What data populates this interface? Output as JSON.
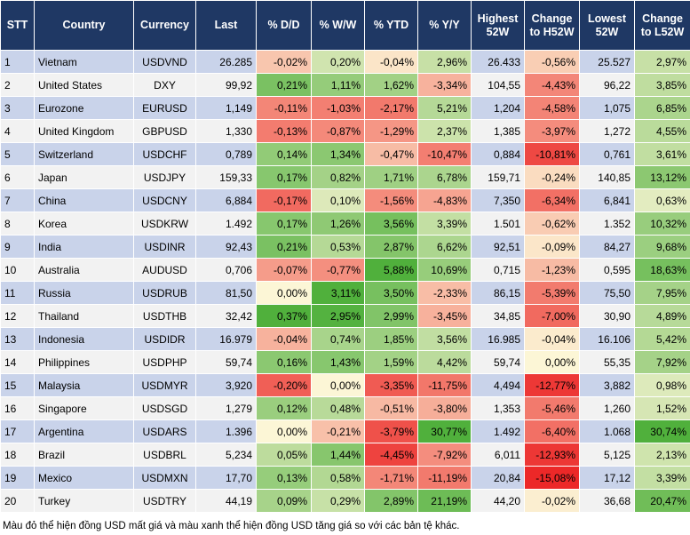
{
  "table": {
    "header": [
      "STT",
      "Country",
      "Currency",
      "Last",
      "% D/D",
      "% W/W",
      "% YTD",
      "% Y/Y",
      "Highest 52W",
      "Change to H52W",
      "Lowest 52W",
      "Change to L52W"
    ],
    "rows": [
      [
        "1",
        "Vietnam",
        "USDVND",
        "26.285",
        "-0,02%",
        "0,20%",
        "-0,04%",
        "2,96%",
        "26.433",
        "-0,56%",
        "25.527",
        "2,97%"
      ],
      [
        "2",
        "United States",
        "DXY",
        "99,92",
        "0,21%",
        "1,11%",
        "1,62%",
        "-3,34%",
        "104,55",
        "-4,43%",
        "96,22",
        "3,85%"
      ],
      [
        "3",
        "Eurozone",
        "EURUSD",
        "1,149",
        "-0,11%",
        "-1,03%",
        "-2,17%",
        "5,21%",
        "1,204",
        "-4,58%",
        "1,075",
        "6,85%"
      ],
      [
        "4",
        "United Kingdom",
        "GBPUSD",
        "1,330",
        "-0,13%",
        "-0,87%",
        "-1,29%",
        "2,37%",
        "1,385",
        "-3,97%",
        "1,272",
        "4,55%"
      ],
      [
        "5",
        "Switzerland",
        "USDCHF",
        "0,789",
        "0,14%",
        "1,34%",
        "-0,47%",
        "-10,47%",
        "0,884",
        "-10,81%",
        "0,761",
        "3,61%"
      ],
      [
        "6",
        "Japan",
        "USDJPY",
        "159,33",
        "0,17%",
        "0,82%",
        "1,71%",
        "6,78%",
        "159,71",
        "-0,24%",
        "140,85",
        "13,12%"
      ],
      [
        "7",
        "China",
        "USDCNY",
        "6,884",
        "-0,17%",
        "0,10%",
        "-1,56%",
        "-4,83%",
        "7,350",
        "-6,34%",
        "6,841",
        "0,63%"
      ],
      [
        "8",
        "Korea",
        "USDKRW",
        "1.492",
        "0,17%",
        "1,26%",
        "3,56%",
        "3,39%",
        "1.501",
        "-0,62%",
        "1.352",
        "10,32%"
      ],
      [
        "9",
        "India",
        "USDINR",
        "92,43",
        "0,21%",
        "0,53%",
        "2,87%",
        "6,62%",
        "92,51",
        "-0,09%",
        "84,27",
        "9,68%"
      ],
      [
        "10",
        "Australia",
        "AUDUSD",
        "0,706",
        "-0,07%",
        "-0,77%",
        "5,88%",
        "10,69%",
        "0,715",
        "-1,23%",
        "0,595",
        "18,63%"
      ],
      [
        "11",
        "Russia",
        "USDRUB",
        "81,50",
        "0,00%",
        "3,11%",
        "3,50%",
        "-2,33%",
        "86,15",
        "-5,39%",
        "75,50",
        "7,95%"
      ],
      [
        "12",
        "Thailand",
        "USDTHB",
        "32,42",
        "0,37%",
        "2,95%",
        "2,99%",
        "-3,45%",
        "34,85",
        "-7,00%",
        "30,90",
        "4,89%"
      ],
      [
        "13",
        "Indonesia",
        "USDIDR",
        "16.979",
        "-0,04%",
        "0,74%",
        "1,85%",
        "3,56%",
        "16.985",
        "-0,04%",
        "16.106",
        "5,42%"
      ],
      [
        "14",
        "Philippines",
        "USDPHP",
        "59,74",
        "0,16%",
        "1,43%",
        "1,59%",
        "4,42%",
        "59,74",
        "0,00%",
        "55,35",
        "7,92%"
      ],
      [
        "15",
        "Malaysia",
        "USDMYR",
        "3,920",
        "-0,20%",
        "0,00%",
        "-3,35%",
        "-11,75%",
        "4,494",
        "-12,77%",
        "3,882",
        "0,98%"
      ],
      [
        "16",
        "Singapore",
        "USDSGD",
        "1,279",
        "0,12%",
        "0,48%",
        "-0,51%",
        "-3,80%",
        "1,353",
        "-5,46%",
        "1,260",
        "1,52%"
      ],
      [
        "17",
        "Argentina",
        "USDARS",
        "1.396",
        "0,00%",
        "-0,21%",
        "-3,79%",
        "30,77%",
        "1.492",
        "-6,40%",
        "1.068",
        "30,74%"
      ],
      [
        "18",
        "Brazil",
        "USDBRL",
        "5,234",
        "0,05%",
        "1,44%",
        "-4,45%",
        "-7,92%",
        "6,011",
        "-12,93%",
        "5,125",
        "2,13%"
      ],
      [
        "19",
        "Mexico",
        "USDMXN",
        "17,70",
        "0,13%",
        "0,58%",
        "-1,71%",
        "-11,19%",
        "20,84",
        "-15,08%",
        "17,12",
        "3,39%"
      ],
      [
        "20",
        "Turkey",
        "USDTRY",
        "44,19",
        "0,09%",
        "0,29%",
        "2,89%",
        "21,19%",
        "44,20",
        "-0,02%",
        "36,68",
        "20,47%"
      ]
    ]
  },
  "footnote": "Màu đỏ thể hiện đồng USD mất giá và màu xanh thể hiện đồng USD tăng giá so với các bản tệ khác."
}
